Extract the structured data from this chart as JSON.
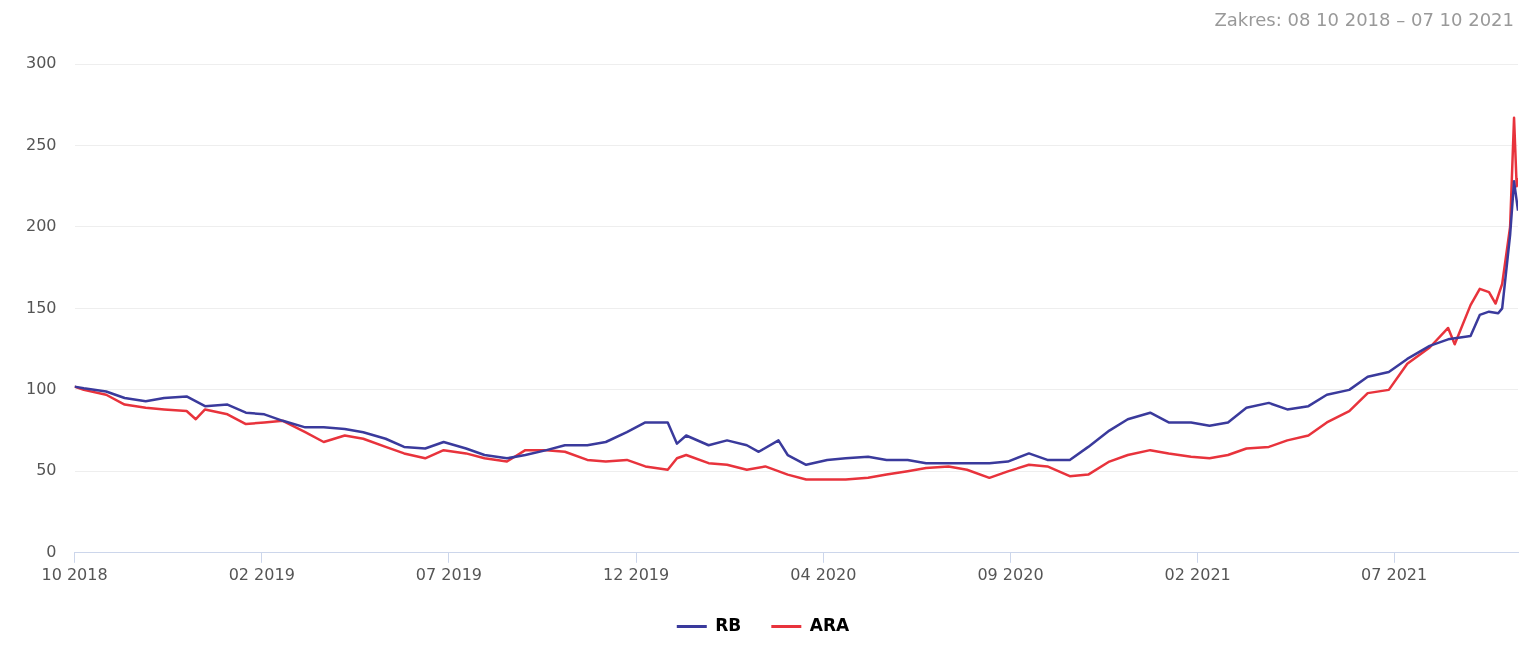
{
  "chart_data": {
    "type": "line",
    "annotations": [
      "Zakres: 08 10 2018 – 07 10 2021"
    ],
    "xlim": [
      "2018-10-08",
      "2021-10-07"
    ],
    "xticks": [
      {
        "value": "2018-10-08",
        "label": "10 2018"
      },
      {
        "value": "2019-02-27",
        "label": "02 2019"
      },
      {
        "value": "2019-07-19",
        "label": "07 2019"
      },
      {
        "value": "2019-12-08",
        "label": "12 2019"
      },
      {
        "value": "2020-04-28",
        "label": "04 2020"
      },
      {
        "value": "2020-09-17",
        "label": "09 2020"
      },
      {
        "value": "2021-02-06",
        "label": "02 2021"
      },
      {
        "value": "2021-07-05",
        "label": "07 2021"
      }
    ],
    "ylim": [
      0,
      300
    ],
    "yticks": [
      0,
      50,
      100,
      150,
      200,
      250,
      300
    ],
    "grid": "y",
    "legend": "bottom",
    "marker": "none",
    "line_style": "solid",
    "series": [
      {
        "name": "RB",
        "color": "#3a3a9c",
        "x": [
          "2018-10-08",
          "2018-10-15",
          "2018-11-01",
          "2018-11-15",
          "2018-12-01",
          "2018-12-15",
          "2019-01-01",
          "2019-01-15",
          "2019-02-01",
          "2019-02-15",
          "2019-03-01",
          "2019-03-15",
          "2019-04-01",
          "2019-04-15",
          "2019-05-01",
          "2019-05-15",
          "2019-06-01",
          "2019-06-15",
          "2019-07-01",
          "2019-07-15",
          "2019-08-01",
          "2019-08-15",
          "2019-09-01",
          "2019-09-15",
          "2019-10-01",
          "2019-10-15",
          "2019-11-01",
          "2019-11-15",
          "2019-12-01",
          "2019-12-15",
          "2020-01-01",
          "2020-01-08",
          "2020-01-15",
          "2020-02-01",
          "2020-02-15",
          "2020-03-01",
          "2020-03-10",
          "2020-03-25",
          "2020-04-01",
          "2020-04-15",
          "2020-05-01",
          "2020-05-15",
          "2020-06-01",
          "2020-06-15",
          "2020-07-01",
          "2020-07-15",
          "2020-08-01",
          "2020-08-15",
          "2020-09-01",
          "2020-09-15",
          "2020-10-01",
          "2020-10-15",
          "2020-11-01",
          "2020-11-15",
          "2020-12-01",
          "2020-12-15",
          "2021-01-01",
          "2021-01-15",
          "2021-02-01",
          "2021-02-15",
          "2021-03-01",
          "2021-03-15",
          "2021-04-01",
          "2021-04-15",
          "2021-05-01",
          "2021-05-15",
          "2021-06-01",
          "2021-06-15",
          "2021-07-01",
          "2021-07-15",
          "2021-08-01",
          "2021-08-15",
          "2021-09-01",
          "2021-09-08",
          "2021-09-15",
          "2021-09-22",
          "2021-09-25",
          "2021-10-01",
          "2021-10-04",
          "2021-10-07"
        ],
        "values": [
          102,
          101,
          99,
          95,
          93,
          95,
          96,
          90,
          91,
          86,
          85,
          81,
          77,
          77,
          76,
          74,
          70,
          65,
          64,
          68,
          64,
          60,
          58,
          60,
          63,
          66,
          66,
          68,
          74,
          80,
          80,
          67,
          72,
          66,
          69,
          66,
          62,
          69,
          60,
          54,
          57,
          58,
          59,
          57,
          57,
          55,
          55,
          55,
          55,
          56,
          61,
          57,
          57,
          65,
          75,
          82,
          86,
          80,
          80,
          78,
          80,
          89,
          92,
          88,
          90,
          97,
          100,
          108,
          111,
          119,
          127,
          131,
          133,
          146,
          148,
          147,
          150,
          195,
          228,
          210
        ]
      },
      {
        "name": "ARA",
        "color": "#e8333c",
        "x": [
          "2018-10-08",
          "2018-10-15",
          "2018-11-01",
          "2018-11-15",
          "2018-12-01",
          "2018-12-15",
          "2019-01-01",
          "2019-01-08",
          "2019-01-15",
          "2019-02-01",
          "2019-02-15",
          "2019-03-01",
          "2019-03-15",
          "2019-04-01",
          "2019-04-15",
          "2019-05-01",
          "2019-05-15",
          "2019-06-01",
          "2019-06-15",
          "2019-07-01",
          "2019-07-15",
          "2019-08-01",
          "2019-08-15",
          "2019-09-01",
          "2019-09-15",
          "2019-10-01",
          "2019-10-15",
          "2019-11-01",
          "2019-11-15",
          "2019-12-01",
          "2019-12-15",
          "2020-01-01",
          "2020-01-08",
          "2020-01-15",
          "2020-02-01",
          "2020-02-15",
          "2020-03-01",
          "2020-03-15",
          "2020-04-01",
          "2020-04-15",
          "2020-05-01",
          "2020-05-15",
          "2020-06-01",
          "2020-06-15",
          "2020-07-01",
          "2020-07-15",
          "2020-08-01",
          "2020-08-15",
          "2020-09-01",
          "2020-09-15",
          "2020-10-01",
          "2020-10-15",
          "2020-11-01",
          "2020-11-15",
          "2020-12-01",
          "2020-12-15",
          "2021-01-01",
          "2021-01-15",
          "2021-02-01",
          "2021-02-15",
          "2021-03-01",
          "2021-03-15",
          "2021-04-01",
          "2021-04-15",
          "2021-05-01",
          "2021-05-15",
          "2021-06-01",
          "2021-06-15",
          "2021-07-01",
          "2021-07-15",
          "2021-08-01",
          "2021-08-15",
          "2021-08-20",
          "2021-09-01",
          "2021-09-08",
          "2021-09-15",
          "2021-09-20",
          "2021-09-25",
          "2021-10-01",
          "2021-10-04",
          "2021-10-06",
          "2021-10-07"
        ],
        "values": [
          102,
          100,
          97,
          91,
          89,
          88,
          87,
          82,
          88,
          85,
          79,
          80,
          81,
          74,
          68,
          72,
          70,
          65,
          61,
          58,
          63,
          61,
          58,
          56,
          63,
          63,
          62,
          57,
          56,
          57,
          53,
          51,
          58,
          60,
          55,
          54,
          51,
          53,
          48,
          45,
          45,
          45,
          46,
          48,
          50,
          52,
          53,
          51,
          46,
          50,
          54,
          53,
          47,
          48,
          56,
          60,
          63,
          61,
          59,
          58,
          60,
          64,
          65,
          69,
          72,
          80,
          87,
          98,
          100,
          116,
          126,
          138,
          128,
          152,
          162,
          160,
          153,
          165,
          200,
          267,
          225,
          230
        ]
      }
    ]
  }
}
